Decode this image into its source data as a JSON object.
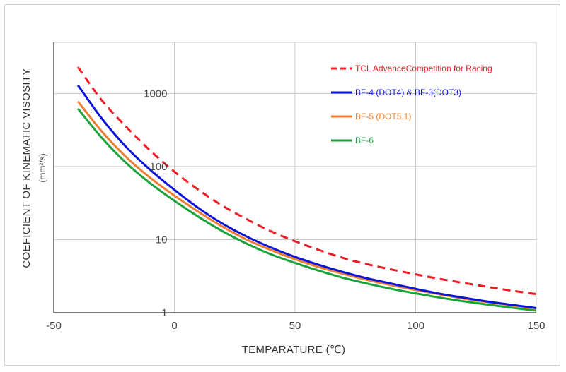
{
  "chart_data": {
    "type": "line",
    "title": "",
    "xlabel": "TEMPARATURE (℃)",
    "ylabel": "COEFICIENT OF KINEMATIC VISOSITY",
    "ylabel_unit": "(mm²/s)",
    "xlim": [
      -50,
      150
    ],
    "ylim": [
      1,
      5000
    ],
    "yscale": "log",
    "x_ticks": [
      -50,
      0,
      50,
      100,
      150
    ],
    "x_tick_labels": [
      "-50",
      "0",
      "50",
      "100",
      "150"
    ],
    "y_ticks": [
      1,
      10,
      100,
      1000
    ],
    "y_tick_labels": [
      "1",
      "10",
      "100",
      "1000"
    ],
    "grid": true,
    "legend_position": "top-right",
    "series": [
      {
        "name": "TCL AdvanceCompetition for Racing",
        "color": "#ee1c24",
        "style": "dashed",
        "x": [
          -40,
          -30,
          -20,
          -10,
          0,
          10,
          20,
          30,
          40,
          50,
          60,
          70,
          80,
          90,
          100,
          110,
          120,
          130,
          140,
          150
        ],
        "y": [
          2300,
          800,
          350,
          165,
          85,
          48,
          29,
          19,
          13,
          9.5,
          7.2,
          5.6,
          4.6,
          3.9,
          3.35,
          2.9,
          2.55,
          2.25,
          2.0,
          1.8
        ]
      },
      {
        "name": "BF-4 (DOT4) & BF-3(DOT3)",
        "color": "#0a14d8",
        "style": "solid",
        "x": [
          -40,
          -30,
          -20,
          -10,
          0,
          10,
          20,
          30,
          40,
          50,
          60,
          70,
          80,
          90,
          100,
          110,
          120,
          130,
          140,
          150
        ],
        "y": [
          1300,
          450,
          185,
          90,
          48,
          27,
          16.5,
          11,
          7.8,
          5.8,
          4.5,
          3.6,
          2.95,
          2.5,
          2.12,
          1.82,
          1.6,
          1.42,
          1.28,
          1.16
        ]
      },
      {
        "name": "BF-5 (DOT5.1)",
        "color": "#ed7d31",
        "style": "solid",
        "x": [
          -40,
          -30,
          -20,
          -10,
          0,
          10,
          20,
          30,
          40,
          50,
          60,
          70,
          80,
          90,
          100,
          110,
          120,
          130,
          140,
          150
        ],
        "y": [
          780,
          300,
          135,
          70,
          40,
          24,
          15,
          10,
          7.2,
          5.4,
          4.2,
          3.4,
          2.8,
          2.38,
          2.05,
          1.78,
          1.56,
          1.39,
          1.26,
          1.14
        ]
      },
      {
        "name": "BF-6",
        "color": "#1aa33a",
        "style": "solid",
        "x": [
          -40,
          -30,
          -20,
          -10,
          0,
          10,
          20,
          30,
          40,
          50,
          60,
          70,
          80,
          90,
          100,
          110,
          120,
          130,
          140,
          150
        ],
        "y": [
          620,
          245,
          112,
          59,
          34,
          20.5,
          13,
          8.8,
          6.3,
          4.8,
          3.75,
          3.0,
          2.5,
          2.12,
          1.84,
          1.61,
          1.43,
          1.29,
          1.17,
          1.07
        ]
      }
    ]
  },
  "colors": {
    "grid": "#c8c8c8",
    "axis": "#333333",
    "tick_text": "#444444"
  }
}
